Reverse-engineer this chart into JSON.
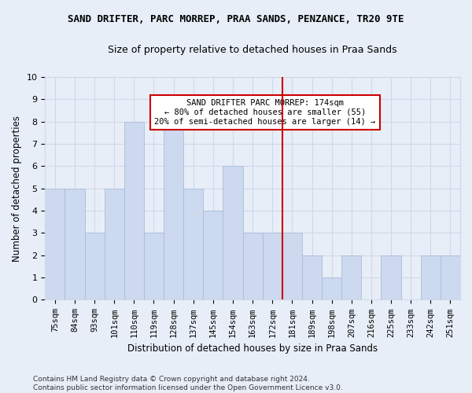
{
  "title_line1": "SAND DRIFTER, PARC MORREP, PRAA SANDS, PENZANCE, TR20 9TE",
  "title_line2": "Size of property relative to detached houses in Praa Sands",
  "xlabel": "Distribution of detached houses by size in Praa Sands",
  "ylabel": "Number of detached properties",
  "footer": "Contains HM Land Registry data © Crown copyright and database right 2024.\nContains public sector information licensed under the Open Government Licence v3.0.",
  "categories": [
    "75sqm",
    "84sqm",
    "93sqm",
    "101sqm",
    "110sqm",
    "119sqm",
    "128sqm",
    "137sqm",
    "145sqm",
    "154sqm",
    "163sqm",
    "172sqm",
    "181sqm",
    "189sqm",
    "198sqm",
    "207sqm",
    "216sqm",
    "225sqm",
    "233sqm",
    "242sqm",
    "251sqm"
  ],
  "values": [
    5,
    5,
    3,
    5,
    8,
    3,
    8,
    5,
    4,
    6,
    3,
    3,
    3,
    2,
    1,
    2,
    0,
    2,
    0,
    2,
    2
  ],
  "bar_color": "#ccd9ee",
  "bar_edge_color": "#a8bdd8",
  "bar_width": 1.0,
  "vline_x_index": 11.5,
  "vline_color": "#cc0000",
  "ylim": [
    0,
    10
  ],
  "yticks": [
    0,
    1,
    2,
    3,
    4,
    5,
    6,
    7,
    8,
    9,
    10
  ],
  "annotation_text": "SAND DRIFTER PARC MORREP: 174sqm\n← 80% of detached houses are smaller (55)\n20% of semi-detached houses are larger (14) →",
  "annotation_box_color": "#cc0000",
  "annotation_bg": "white",
  "grid_color": "#d0d8e8",
  "bg_color": "#e8eef8",
  "title1_fontsize": 9,
  "title2_fontsize": 9,
  "ylabel_fontsize": 8.5,
  "xlabel_fontsize": 8.5,
  "tick_fontsize": 7.5,
  "annot_fontsize": 7.5,
  "footer_fontsize": 6.5
}
